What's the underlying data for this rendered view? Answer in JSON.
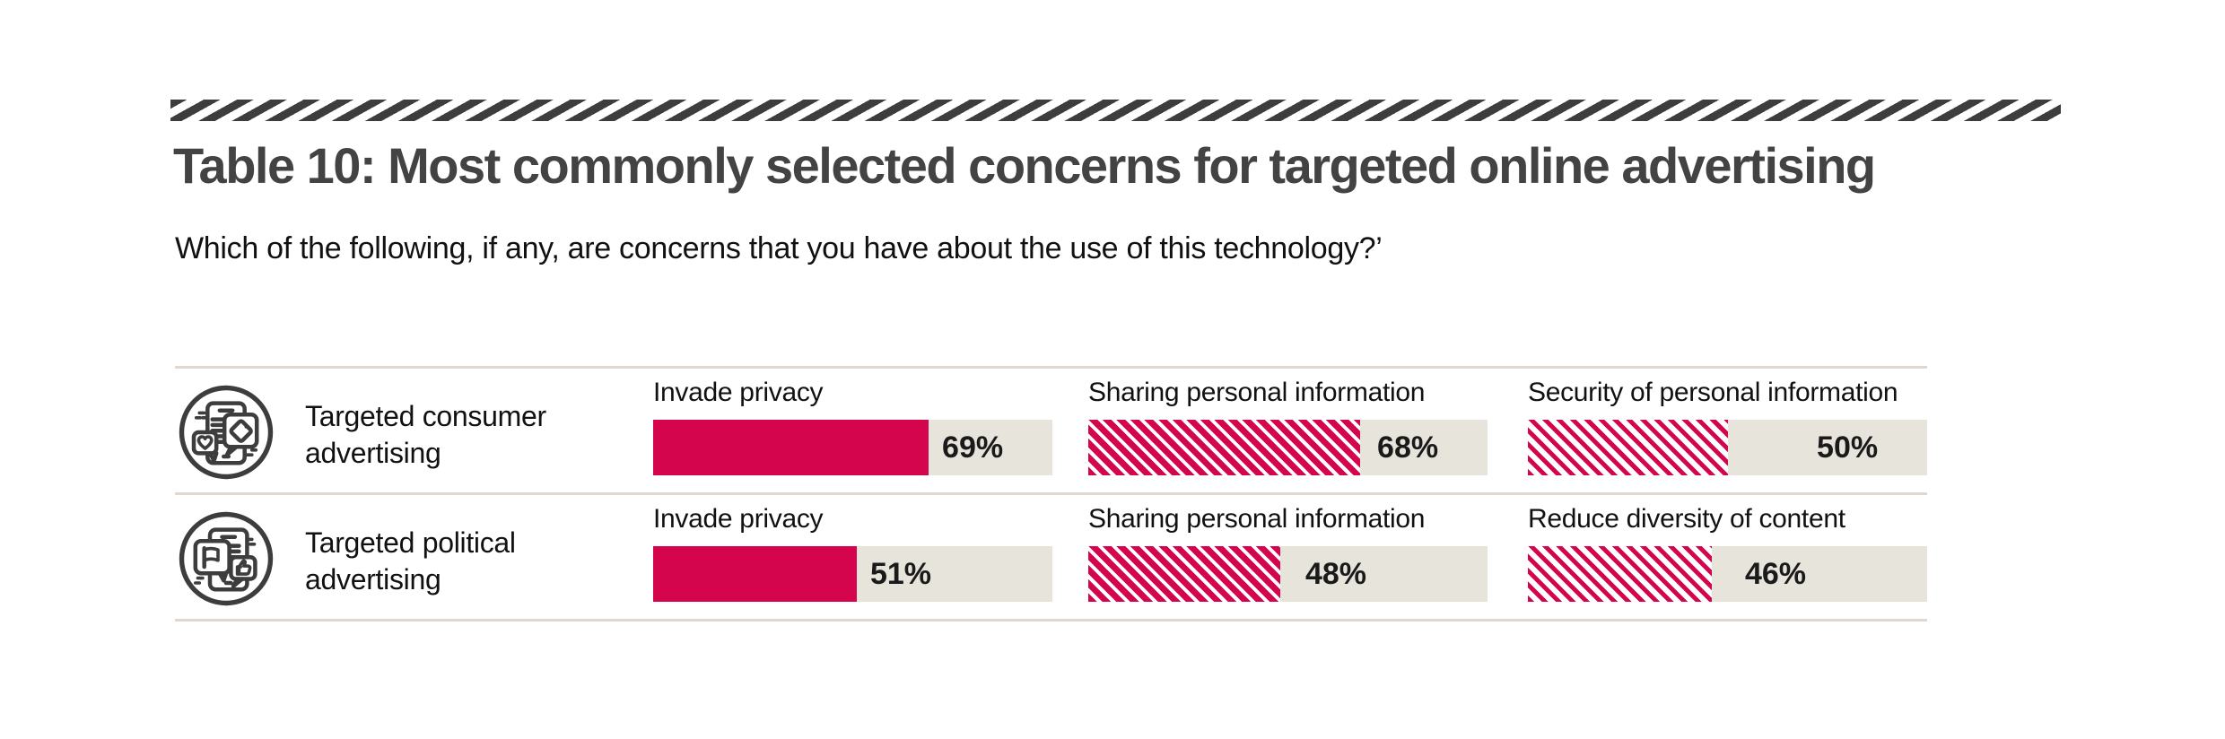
{
  "header": {
    "title": "Table 10: Most commonly selected concerns for targeted online advertising",
    "subtitle": "Which of the following, if any, are concerns that you have about the use of this technology?’"
  },
  "chart_data": {
    "type": "bar",
    "orientation": "horizontal",
    "unit": "%",
    "value_range": [
      0,
      100
    ],
    "grid": false,
    "legend": "none",
    "colors": {
      "bar_solid": "#d5054d",
      "bar_track": "#e6e4db",
      "row_divider": "#e2d7cf",
      "ribbon": "#3d3d3d",
      "title_text": "#434343",
      "body_text": "#111111"
    },
    "rows": [
      {
        "icon": "consumer-advertising-icon",
        "label": "Targeted consumer advertising",
        "bars": [
          {
            "label": "Invade privacy",
            "value": 69,
            "style": "solid"
          },
          {
            "label": "Sharing personal information",
            "value": 68,
            "style": "hatch-dense"
          },
          {
            "label": "Security of personal information",
            "value": 50,
            "style": "hatch-sparse"
          }
        ]
      },
      {
        "icon": "political-advertising-icon",
        "label": "Targeted political advertising",
        "bars": [
          {
            "label": "Invade privacy",
            "value": 51,
            "style": "solid"
          },
          {
            "label": "Sharing personal information",
            "value": 48,
            "style": "hatch-dense"
          },
          {
            "label": "Reduce diversity of content",
            "value": 46,
            "style": "hatch-sparse"
          }
        ]
      }
    ]
  }
}
